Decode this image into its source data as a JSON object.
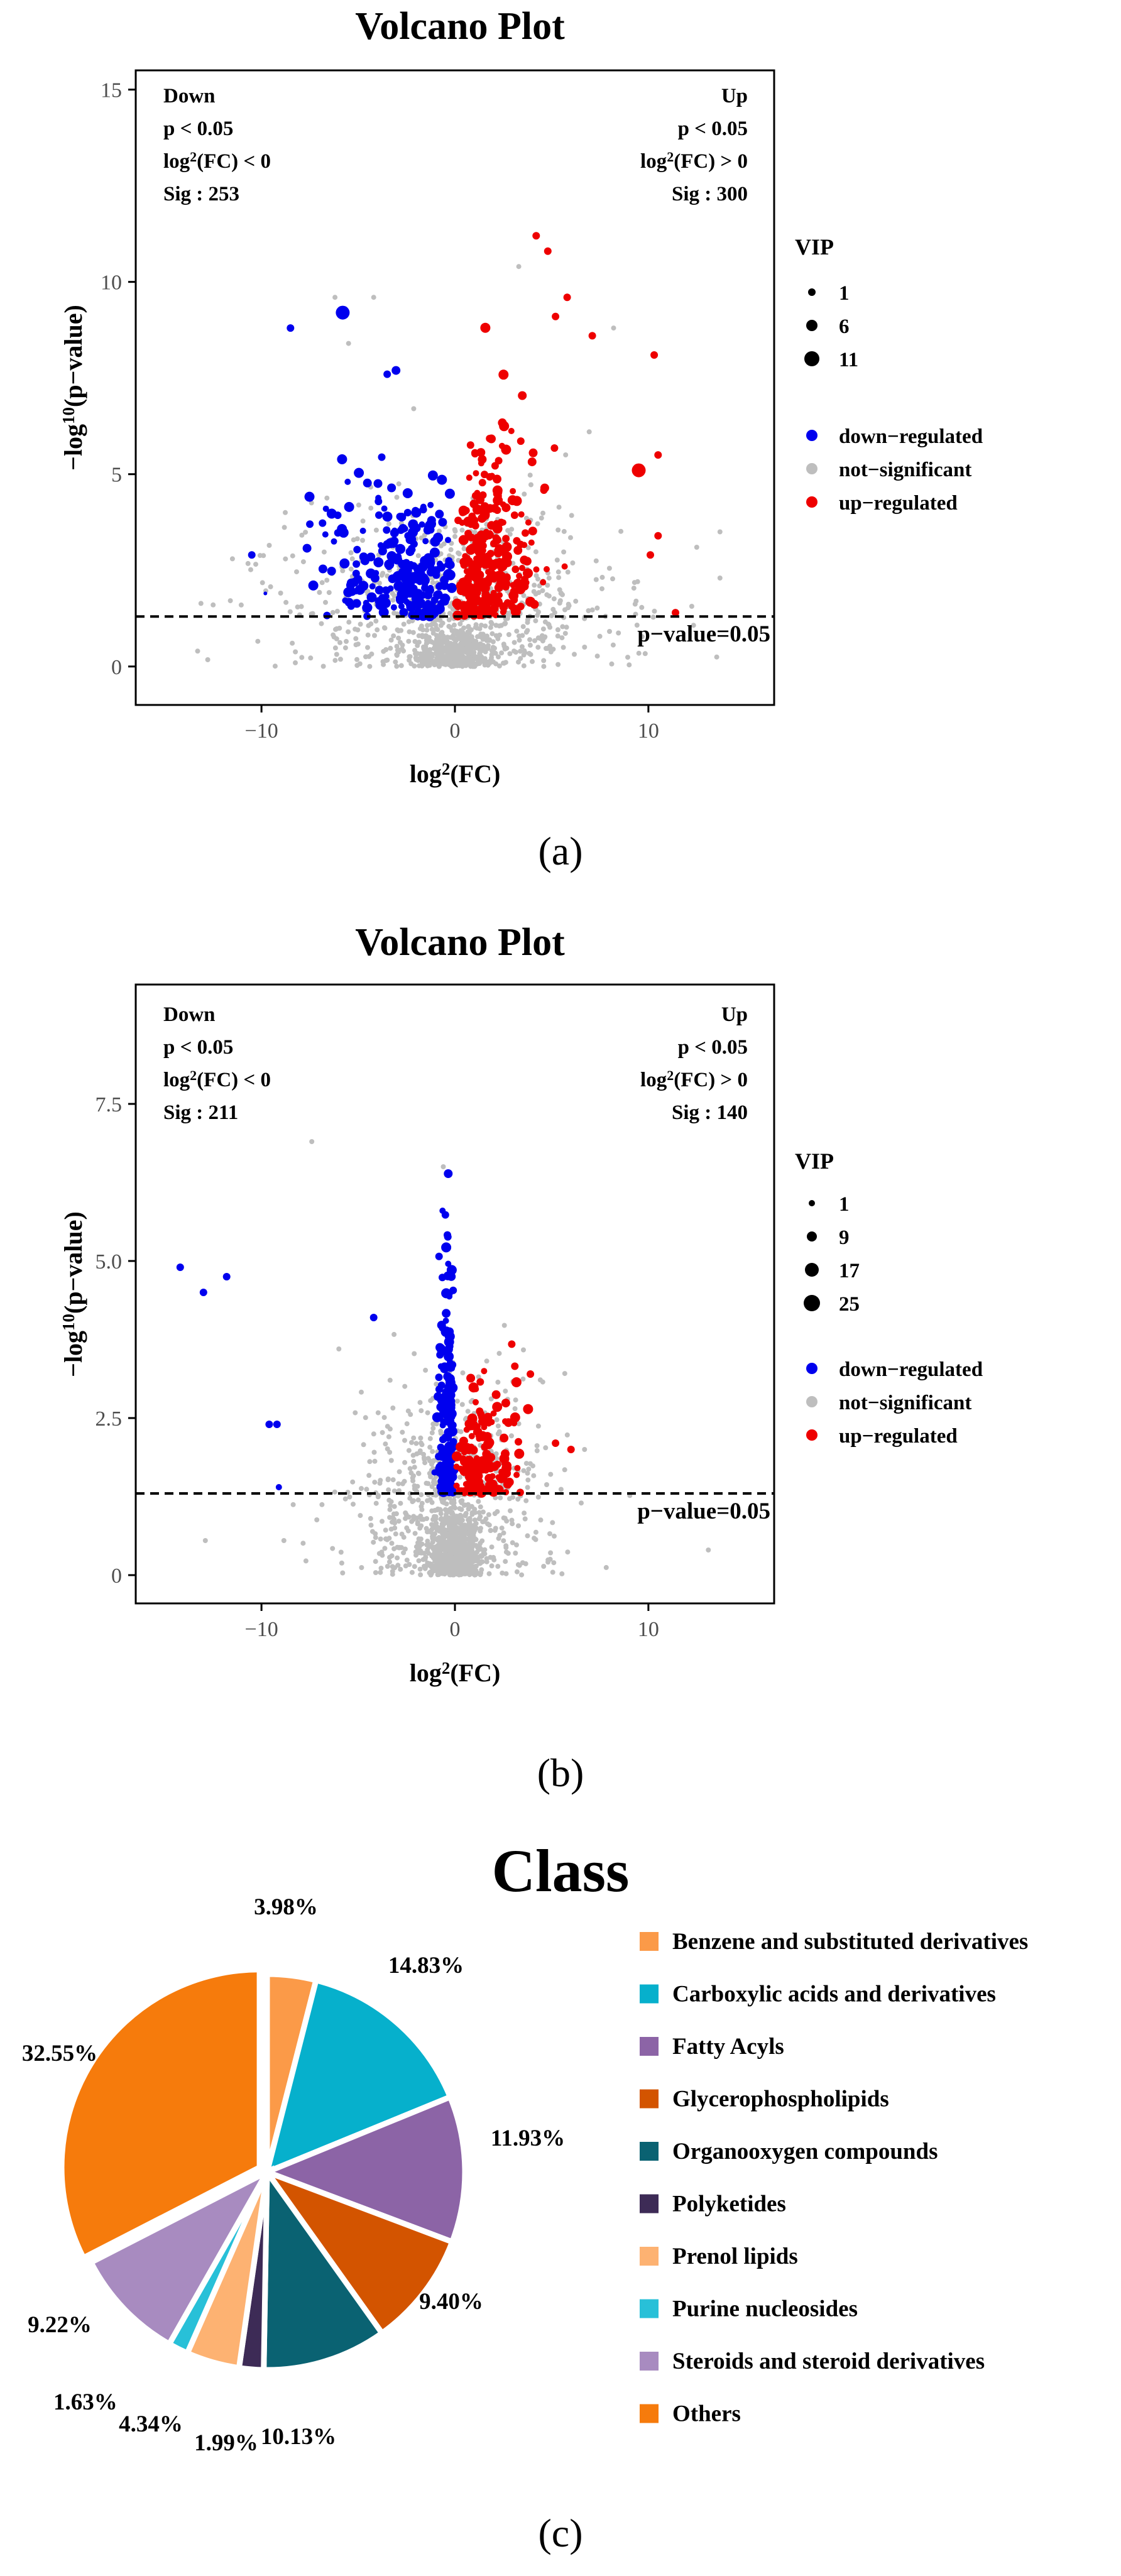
{
  "captions": [
    "(a)",
    "(b)",
    "(c)"
  ],
  "colors": {
    "down": "#0000ee",
    "ns": "#bebebe",
    "up": "#ee0000"
  },
  "chart_data": [
    {
      "type": "scatter",
      "title": "Volcano Plot",
      "xlabel_base": "log",
      "xlabel_sup": "2",
      "xlabel_tail": "(FC)",
      "ylabel_base": "−log",
      "ylabel_sup": "10",
      "ylabel_tail": "(p−value)",
      "xlim": [
        -16.5,
        16.5
      ],
      "ylim": [
        -1.0,
        15.5
      ],
      "xticks": [
        -10,
        0,
        10
      ],
      "xtick_labels": [
        "−10",
        "0",
        "10"
      ],
      "yticks": [
        0,
        5,
        10,
        15
      ],
      "ytick_labels": [
        "0",
        "5",
        "10",
        "15"
      ],
      "threshold": 1.3,
      "threshold_label": "p−value=0.05",
      "down": {
        "title": "Down",
        "p": "p < 0.05",
        "fc_base": "log",
        "fc_sup": "2",
        "fc_tail": "(FC) < 0",
        "sig": "Sig : 253"
      },
      "up": {
        "title": "Up",
        "p": "p < 0.05",
        "fc_base": "log",
        "fc_sup": "2",
        "fc_tail": "(FC) > 0",
        "sig": "Sig : 300"
      },
      "vip_title": "VIP",
      "vip_levels": [
        "1",
        "6",
        "11"
      ],
      "legend_labels": [
        "down−regulated",
        "not−significant",
        "up−regulated"
      ],
      "sig_counts": {
        "down": 253,
        "up": 300
      },
      "highlight_points": {
        "down": [
          [
            -5.8,
            9.2,
            11
          ],
          [
            -8.5,
            8.8,
            6
          ],
          [
            -3.5,
            7.6,
            6
          ],
          [
            -10.5,
            2.9,
            6
          ],
          [
            -9.8,
            1.9,
            3
          ],
          [
            -7.5,
            3.7,
            6
          ]
        ],
        "up": [
          [
            4.2,
            11.2,
            6
          ],
          [
            4.8,
            10.8,
            6
          ],
          [
            5.8,
            9.6,
            6
          ],
          [
            5.2,
            9.1,
            6
          ],
          [
            7.1,
            8.6,
            6
          ],
          [
            10.3,
            8.1,
            6
          ],
          [
            9.5,
            5.1,
            11
          ],
          [
            10.5,
            5.5,
            6
          ],
          [
            10.5,
            3.4,
            6
          ],
          [
            10.1,
            2.9,
            6
          ],
          [
            11.4,
            1.4,
            6
          ]
        ],
        "ns": [
          [
            -13.3,
            0.4
          ],
          [
            -12.5,
            1.6
          ],
          [
            -11.5,
            2.8
          ],
          [
            -6.2,
            9.6
          ],
          [
            -5.5,
            8.4
          ],
          [
            -4.2,
            9.6
          ],
          [
            12.5,
            3.1
          ],
          [
            13.7,
            3.5
          ],
          [
            13.7,
            2.3
          ],
          [
            8.2,
            8.8
          ],
          [
            3.3,
            10.4
          ]
        ]
      }
    },
    {
      "type": "scatter",
      "title": "Volcano Plot",
      "xlabel_base": "log",
      "xlabel_sup": "2",
      "xlabel_tail": "(FC)",
      "ylabel_base": "−log",
      "ylabel_sup": "10",
      "ylabel_tail": "(p−value)",
      "xlim": [
        -16.5,
        16.5
      ],
      "ylim": [
        -0.45,
        9.4
      ],
      "xticks": [
        -10,
        0,
        10
      ],
      "xtick_labels": [
        "−10",
        "0",
        "10"
      ],
      "yticks": [
        0,
        2.5,
        5.0,
        7.5
      ],
      "ytick_labels": [
        "0",
        "2.5",
        "5.0",
        "7.5"
      ],
      "threshold": 1.3,
      "threshold_label": "p−value=0.05",
      "down": {
        "title": "Down",
        "p": "p < 0.05",
        "fc_base": "log",
        "fc_sup": "2",
        "fc_tail": "(FC) < 0",
        "sig": "Sig : 211"
      },
      "up": {
        "title": "Up",
        "p": "p < 0.05",
        "fc_base": "log",
        "fc_sup": "2",
        "fc_tail": "(FC) > 0",
        "sig": "Sig : 140"
      },
      "vip_title": "VIP",
      "vip_levels": [
        "1",
        "9",
        "17",
        "25"
      ],
      "legend_labels": [
        "down−regulated",
        "not−significant",
        "up−regulated"
      ],
      "sig_counts": {
        "down": 211,
        "up": 140
      },
      "highlight_points": {
        "down": [
          [
            -14.2,
            4.9,
            6
          ],
          [
            -13.0,
            4.5,
            6
          ],
          [
            -11.8,
            4.75,
            6
          ],
          [
            -9.6,
            2.4,
            6
          ],
          [
            -9.2,
            2.4,
            6
          ],
          [
            -9.1,
            1.4,
            5
          ],
          [
            -4.2,
            4.1,
            6
          ]
        ],
        "up": [
          [
            5.2,
            2.1,
            6
          ],
          [
            6.0,
            2.0,
            6
          ],
          [
            3.9,
            3.2,
            6
          ]
        ],
        "ns": [
          [
            -7.4,
            6.9
          ],
          [
            -0.6,
            6.5
          ],
          [
            13.1,
            0.4
          ],
          [
            -12.9,
            0.55
          ],
          [
            6.7,
            2.0
          ],
          [
            -6.0,
            3.6
          ]
        ]
      }
    },
    {
      "type": "pie",
      "title": "Class",
      "slices": [
        {
          "label": "Benzene and substituted derivatives",
          "value": 3.98,
          "pct_label": "3.98%",
          "color": "#fb9a48"
        },
        {
          "label": "Carboxylic acids and derivatives",
          "value": 14.83,
          "pct_label": "14.83%",
          "color": "#06b0cc"
        },
        {
          "label": "Fatty Acyls",
          "value": 11.93,
          "pct_label": "11.93%",
          "color": "#8c64a6"
        },
        {
          "label": "Glycerophospholipids",
          "value": 9.4,
          "pct_label": "9.40%",
          "color": "#d35400"
        },
        {
          "label": "Organooxygen compounds",
          "value": 10.13,
          "pct_label": "10.13%",
          "color": "#0a6272"
        },
        {
          "label": "Polyketides",
          "value": 1.99,
          "pct_label": "1.99%",
          "color": "#3d2b56"
        },
        {
          "label": "Prenol lipids",
          "value": 4.34,
          "pct_label": "4.34%",
          "color": "#fdb272"
        },
        {
          "label": "Purine nucleosides",
          "value": 1.63,
          "pct_label": "1.63%",
          "color": "#28c0d8"
        },
        {
          "label": "Steroids and steroid derivatives",
          "value": 9.22,
          "pct_label": "9.22%",
          "color": "#a88bc0"
        },
        {
          "label": "Others",
          "value": 32.55,
          "pct_label": "32.55%",
          "color": "#f67b0c"
        }
      ]
    }
  ]
}
